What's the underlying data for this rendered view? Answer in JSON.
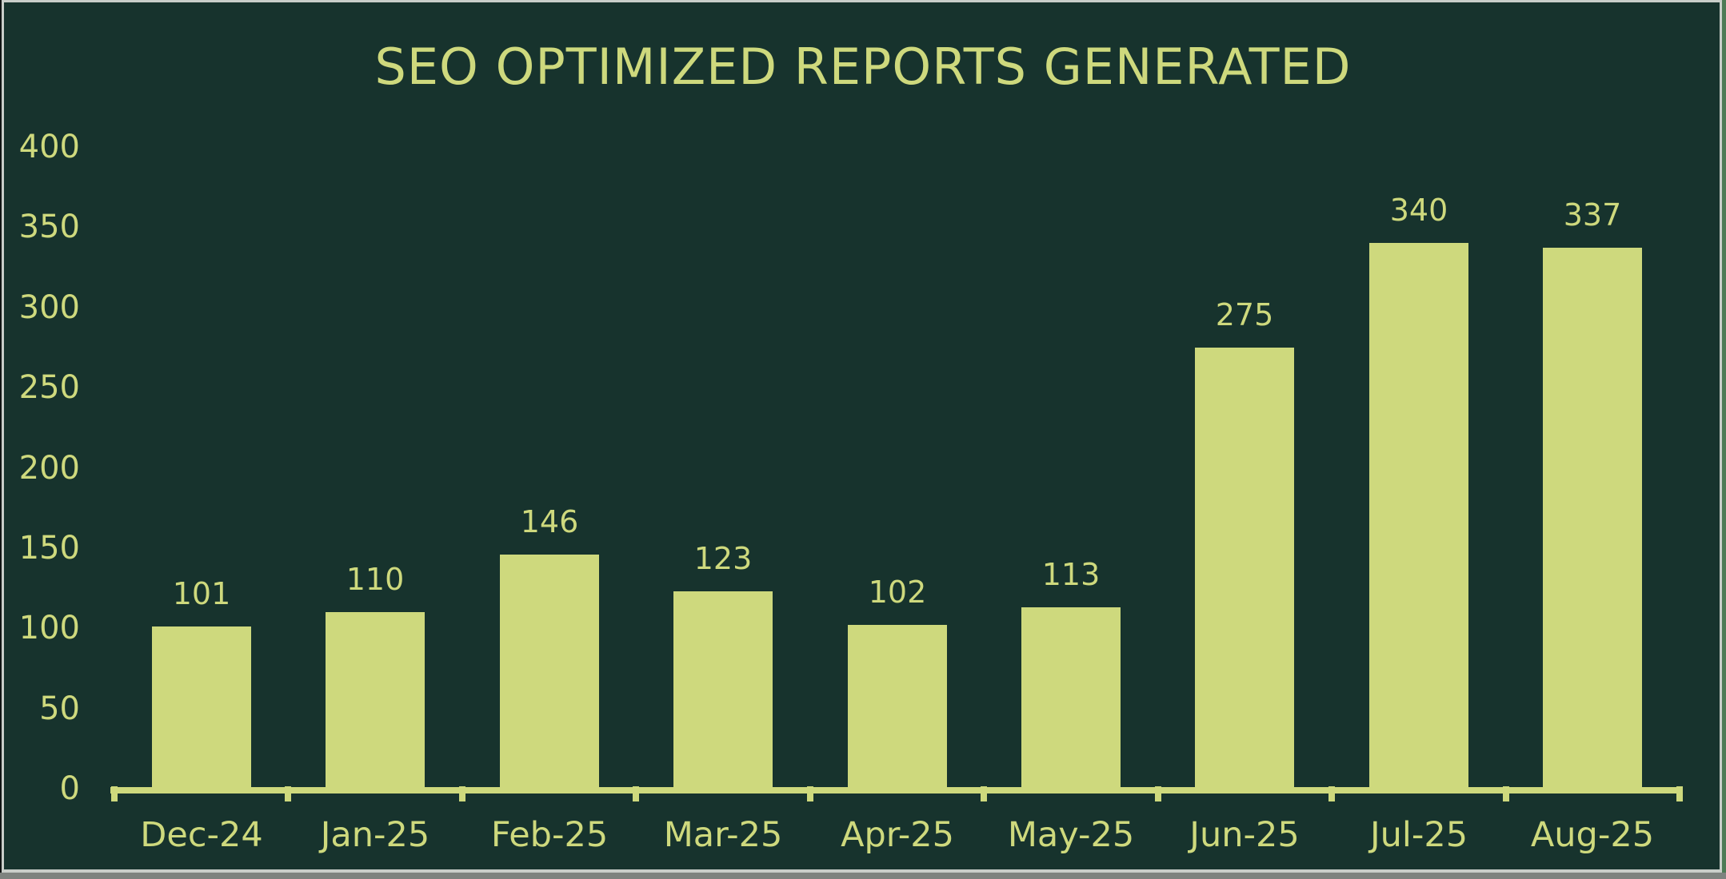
{
  "title": "SEO OPTIMIZED REPORTS GENERATED",
  "chart_data": {
    "type": "bar",
    "title": "SEO OPTIMIZED REPORTS GENERATED",
    "categories": [
      "Dec-24",
      "Jan-25",
      "Feb-25",
      "Mar-25",
      "Apr-25",
      "May-25",
      "Jun-25",
      "Jul-25",
      "Aug-25"
    ],
    "values": [
      101,
      110,
      146,
      123,
      102,
      113,
      275,
      340,
      337
    ],
    "data_labels": [
      "101",
      "110",
      "146",
      "123",
      "102",
      "113",
      "275",
      "340",
      "337"
    ],
    "xlabel": "",
    "ylabel": "",
    "ylim": [
      0,
      400
    ],
    "yticks": [
      0,
      50,
      100,
      150,
      200,
      250,
      300,
      350,
      400
    ],
    "grid": false,
    "legend": null,
    "bar_color": "#CED97D",
    "background_color": "#17332D",
    "text_color": "#CED97D",
    "frame_border_color": "#C9CEC9"
  }
}
